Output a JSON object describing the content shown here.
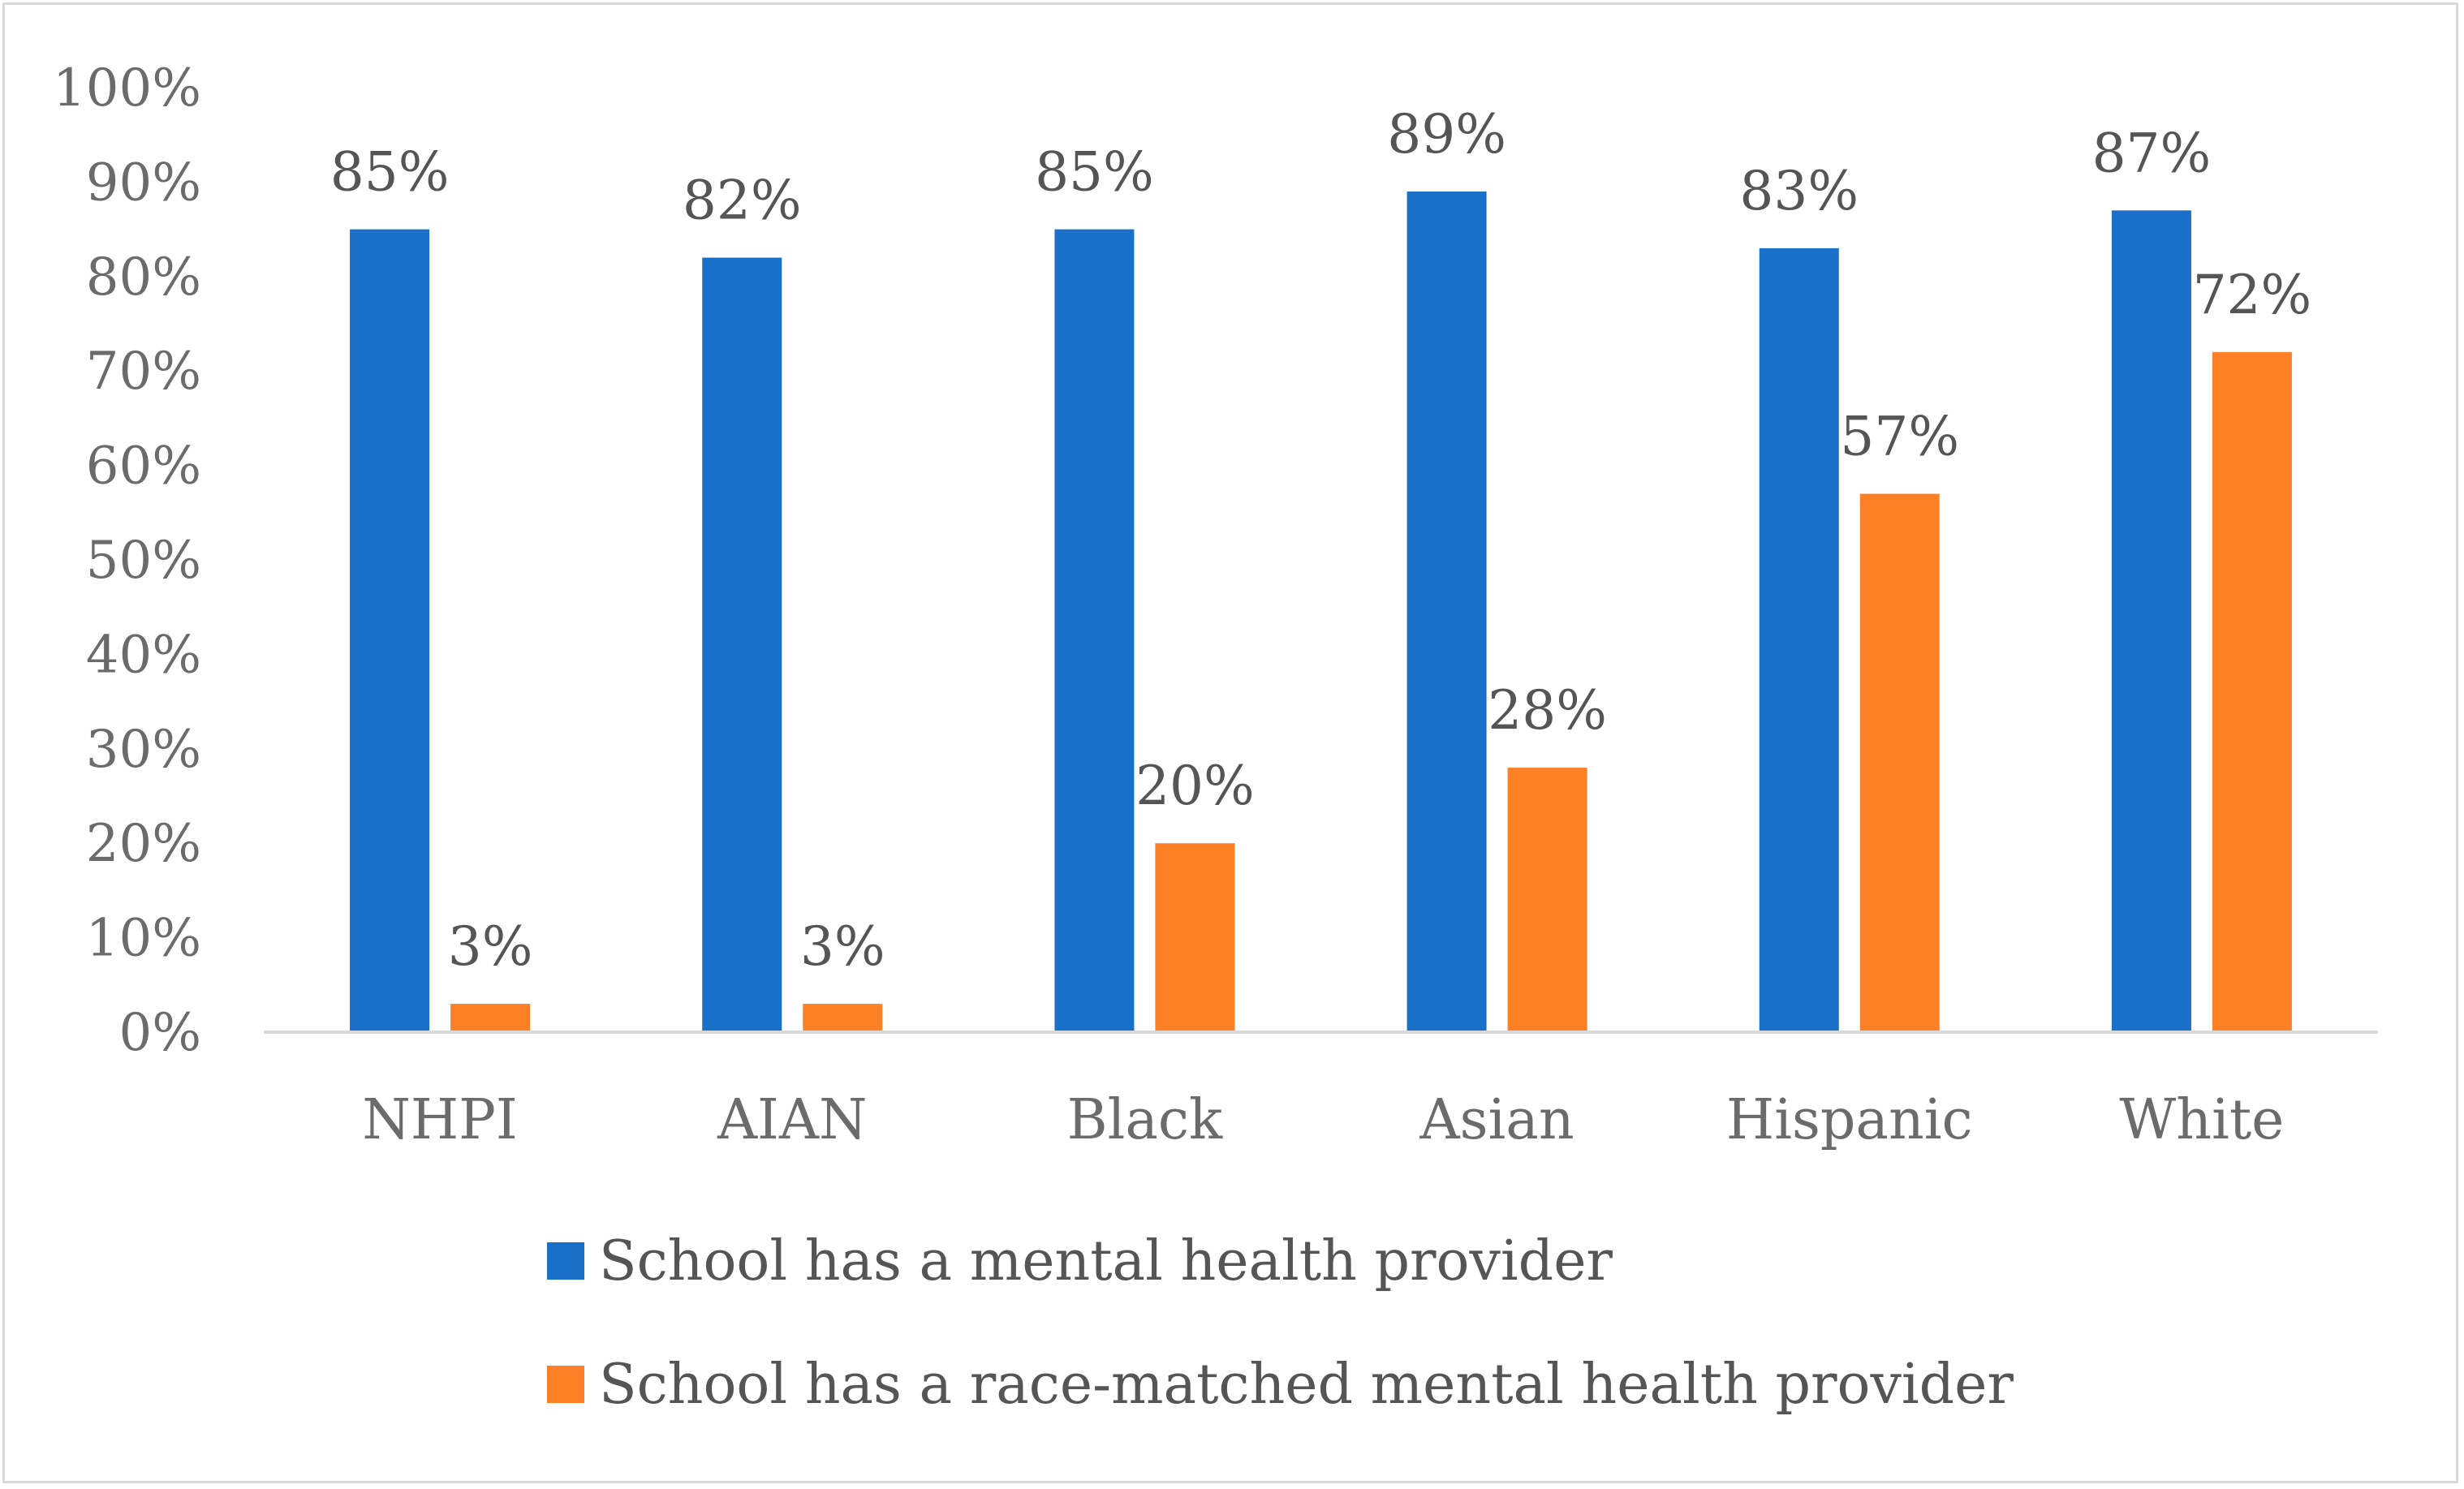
{
  "chart_data": {
    "type": "bar",
    "title": "",
    "xlabel": "",
    "ylabel": "",
    "ylim": [
      0,
      100
    ],
    "y_ticks": [
      "0%",
      "10%",
      "20%",
      "30%",
      "40%",
      "50%",
      "60%",
      "70%",
      "80%",
      "90%",
      "100%"
    ],
    "grid": false,
    "legend_position": "bottom",
    "categories": [
      "NHPI",
      "AIAN",
      "Black",
      "Asian",
      "Hispanic",
      "White"
    ],
    "series": [
      {
        "name": "School has a mental health provider",
        "color": "#1a70c8",
        "values": [
          85,
          82,
          85,
          89,
          83,
          87
        ],
        "labels": [
          "85%",
          "82%",
          "85%",
          "89%",
          "83%",
          "87%"
        ]
      },
      {
        "name": "School has a race-matched mental health provider",
        "color": "#fd7f26",
        "values": [
          3,
          3,
          20,
          28,
          57,
          72
        ],
        "labels": [
          "3%",
          "3%",
          "20%",
          "28%",
          "57%",
          "72%"
        ]
      }
    ],
    "axis_color": "#d9d9d9"
  }
}
